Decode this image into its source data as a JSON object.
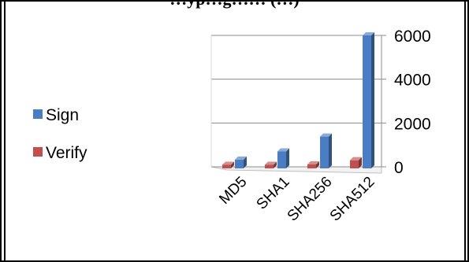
{
  "page": {
    "title": "…yp…g…… (…)"
  },
  "chart_data": {
    "type": "bar",
    "categories": [
      "MD5",
      "SHA1",
      "SHA256",
      "SHA512"
    ],
    "series": [
      {
        "name": "Sign",
        "values": [
          330,
          700,
          1380,
          6000
        ],
        "color": "#4a7ec4"
      },
      {
        "name": "Verify",
        "values": [
          90,
          90,
          110,
          300
        ],
        "color": "#c0504d"
      }
    ],
    "ylim": [
      0,
      6000
    ],
    "yticks": [
      0,
      2000,
      4000,
      6000
    ],
    "grid": true,
    "legend_position": "left"
  }
}
